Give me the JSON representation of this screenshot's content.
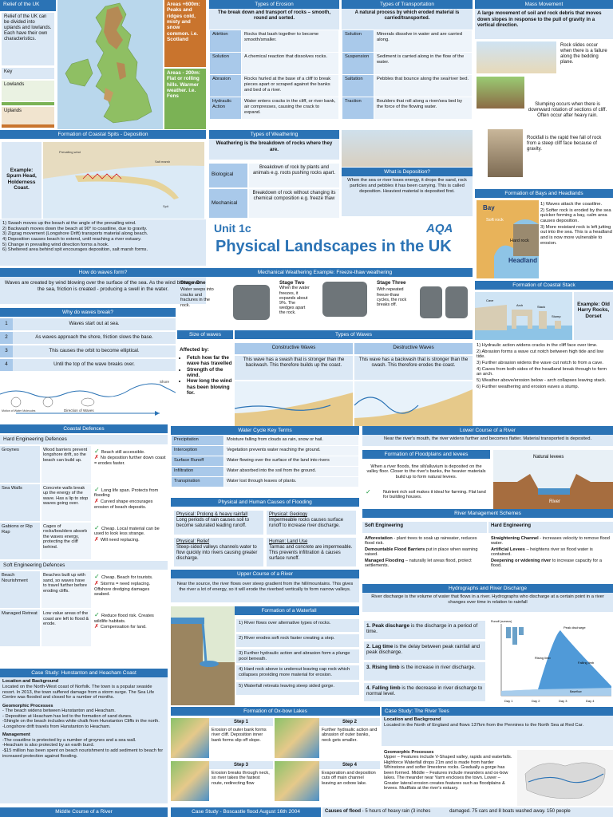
{
  "relief": {
    "title": "Relief of the UK",
    "intro": "Relief of the UK can be divided into uplands and lowlands. Each have their own characteristics.",
    "key": "Key",
    "lowlands": "Lowlands",
    "uplands": "Uplands",
    "upland_note": "Areas +600m: Peaks and ridges cold, misty and snow common. i.e. Scotland",
    "lowland_note": "Areas - 200m: Flat or rolling hills. Warmer weather. i.e. Fens"
  },
  "erosion": {
    "title": "Types of Erosion",
    "lead": "The break down and transport of rocks – smooth, round and sorted.",
    "rows": [
      {
        "k": "Attrition",
        "v": "Rocks that bash together to become smooth/smaller."
      },
      {
        "k": "Solution",
        "v": "A chemical reaction that dissolves rocks."
      },
      {
        "k": "Abrasion",
        "v": "Rocks hurled at the base of a cliff to break pieces apart or scraped against the banks and bed of a river."
      },
      {
        "k": "Hydraulic Action",
        "v": "Water enters cracks in the cliff, or river bank, air compresses, causing the crack to expand."
      }
    ]
  },
  "transport": {
    "title": "Types of Transportation",
    "lead": "A natural process by which eroded material is carried/transported.",
    "rows": [
      {
        "k": "Solution",
        "v": "Minerals dissolve in water and are carried along."
      },
      {
        "k": "Suspension",
        "v": "Sediment is carried along in the flow of the water."
      },
      {
        "k": "Saltation",
        "v": "Pebbles that bounce along the sea/river bed."
      },
      {
        "k": "Traction",
        "v": "Boulders that roll along a river/sea bed by the force of the flowing water."
      }
    ]
  },
  "mass": {
    "title": "Mass Movement",
    "lead": "A large movement of soil and rock debris that moves down slopes in response to the pull of gravity in a vertical direction.",
    "slides": "Rock slides occur when there is a failure along the bedding plane.",
    "slumping": "Slumping occurs when there is downward rotation of sections of cliff. Often occur after heavy rain.",
    "rockfall": "Rockfall is the rapid free fall of rock from a steep cliff face because of gravity."
  },
  "spits": {
    "title": "Formation of Coastal Spits - Deposition",
    "example": "Example: Spurn Head, Holderness Coast.",
    "steps": [
      "1) Swash moves up the beach at the angle of the prevailing wind.",
      "2) Backwash moves down the beach at 90° to coastline, due to gravity.",
      "3) Zigzag movement (Longshore Drift) transports material along beach.",
      "4) Deposition causes beach to extend, until reaching a river estuary.",
      "5) Change in prevailing wind direction forms a hook.",
      "6) Sheltered area behind spit encourages deposition, salt marsh forms."
    ]
  },
  "weathering": {
    "title": "Types of Weathering",
    "lead": "Weathering is the breakdown of rocks where they are.",
    "bio_k": "Biological",
    "bio_v": "Breakdown of rock by plants and animals e.g. roots pushing rocks apart.",
    "mech_k": "Mechanical",
    "mech_v": "Breakdown of rock without changing its chemical composition e.g. freeze thaw"
  },
  "deposition": {
    "title": "What is Deposition?",
    "text": "When the sea or river loses energy, it drops the sand, rock particles and pebbles it has been carrying. This is called deposition. Heaviest material is deposited first."
  },
  "unit": {
    "label": "Unit 1c",
    "title": "Physical Landscapes in the UK",
    "logo": "AQA"
  },
  "bays": {
    "title": "Formation of Bays and Headlands",
    "bay": "Bay",
    "softrock": "Soft rock",
    "hardrock": "Hard rock",
    "headland": "Headland",
    "steps": [
      "1) Waves attack the coastline.",
      "2) Softer rock is eroded by the sea quicker forming a bay, calm area causes deposition.",
      "3) More resistant rock is left jutting out into the sea. This is a headland and is now more vulnerable to erosion."
    ]
  },
  "waves_form": {
    "title": "How do waves form?",
    "text": "Waves are created by wind blowing over the surface of the sea. As the wind blows over the sea, friction is created - producing a swell in the water."
  },
  "waves_break": {
    "title": "Why do waves break?",
    "rows": [
      {
        "n": "1",
        "t": "Waves start out at sea."
      },
      {
        "n": "2",
        "t": "As waves approach the shore, friction slows the base."
      },
      {
        "n": "3",
        "t": "This causes the orbit to become elliptical."
      },
      {
        "n": "4",
        "t": "Until the top of the wave breaks over."
      }
    ],
    "shore": "Shore",
    "direction": "Direction of Waves",
    "motion": "Motion of Water Molecules"
  },
  "freeze": {
    "title": "Mechanical Weathering Example: Freeze-thaw weathering",
    "s1": "Stage One",
    "s1t": "Water seeps into cracks and fractures in the rock.",
    "s2": "Stage Two",
    "s2t": "When the water freezes, it expands about 9%. The wedges apart the rock.",
    "s3": "Stage Three",
    "s3t": "With repeated freeze-thaw cycles, the rock breaks off."
  },
  "size": {
    "title": "Size of waves",
    "lead": "Affected by:",
    "items": [
      "Fetch how far the wave has travelled",
      "Strength of the wind.",
      "How long the wind has been blowing for."
    ]
  },
  "wtypes": {
    "title": "Types of Waves",
    "con": "Constructive Waves",
    "des": "Destructive Waves",
    "con_t": "This wave has a swash that is stronger than the backwash. This therefore builds up the coast.",
    "des_t": "This wave has a backwash that is stronger than the swash. This therefore erodes the coast."
  },
  "stack": {
    "title": "Formation of Coastal Stack",
    "example": "Example: Old Harry Rocks, Dorset",
    "steps": [
      "1) Hydraulic action widens cracks in the cliff face over time.",
      "2) Abrasion forms a wave cut notch between high tide and low tide.",
      "3) Further abrasion widens the wave cut notch to from a cave.",
      "4) Caves from both sides of the headland break through to form an arch.",
      "5) Weather above/erosion below - arch collapses leaving stack.",
      "6) Further weathering and erosion eaves a stump."
    ]
  },
  "defences": {
    "title": "Coastal Defences",
    "hard": "Hard Engineering Defences",
    "soft": "Soft Engineering Defences",
    "hard_rows": [
      {
        "k": "Groynes",
        "d": "Wood barriers prevent longshore drift, so the beach can build up.",
        "p": "Beach still accessible.",
        "c": "No deposition further down coast = erodes faster."
      },
      {
        "k": "Sea Walls",
        "d": "Concrete walls break up the energy of the wave. Has a lip to stop waves going over.",
        "p": "Long life span. Protects from flooding",
        "c": "Curved shape encourages erosion of beach deposits."
      },
      {
        "k": "Gabions or Rip Rap",
        "d": "Cages of rocks/boulders absorb the waves energy, protecting the cliff behind.",
        "p": "Cheap. Local material can be used to look less strange.",
        "c": "Will need replacing."
      }
    ],
    "soft_rows": [
      {
        "k": "Beach Nourishment",
        "d": "Beaches built up with sand, so waves have to travel further before eroding cliffs.",
        "p": "Cheap. Beach for tourists.",
        "c": "Storms = need replacing. Offshore dredging damages seabed."
      },
      {
        "k": "Managed Retreat",
        "d": "Low value areas of the coast are left to flood & erode.",
        "p": "Reduce flood risk. Creates wildlife habitats.",
        "c": "Compensation for land."
      }
    ]
  },
  "watercycle": {
    "title": "Water Cycle Key Terms",
    "rows": [
      {
        "k": "Precipitation",
        "v": "Moisture falling from clouds as rain, snow or hail."
      },
      {
        "k": "Interception",
        "v": "Vegetation prevents water reaching the ground."
      },
      {
        "k": "Surface Runoff",
        "v": "Water flowing over the surface of the land into rivers"
      },
      {
        "k": "Infiltration",
        "v": "Water absorbed into the soil from the ground."
      },
      {
        "k": "Transpiration",
        "v": "Water lost through leaves of plants."
      }
    ]
  },
  "flooding": {
    "title": "Physical and Human Causes of Flooding",
    "c1": "Physical: Prolong & heavy rainfall",
    "c1t": "Long periods of rain causes soil to become saturated leading runoff.",
    "c2": "Physical: Geology",
    "c2t": "Impermeable rocks causes surface runoff to increase river discharge.",
    "c3": "Physical: Relief",
    "c3t": "Steep-sided valleys channels water to flow quickly into rivers causing greater discharge.",
    "c4": "Human: Land Use",
    "c4t": "Tarmac and concrete are impermeable. This prevents infiltration & causes surface runoff."
  },
  "upper": {
    "title": "Upper Course of a River",
    "text": "Near the source, the river flows over steep gradient from the hill/mountains. This gives the river a lot of energy, so it will erode the riverbed vertically to form narrow valleys."
  },
  "waterfall": {
    "title": "Formation of a Waterfall",
    "steps": [
      "1) River flows over alternative types of rocks.",
      "2) River erodes soft rock faster creating a step.",
      "3) Further hydraulic action and abrasion form a plunge pool beneath.",
      "4) Hard rock above is undercut leaving cap rock which collapses providing more material for erosion.",
      "5) Waterfall retreats leaving steep sided gorge."
    ]
  },
  "oxbow": {
    "title": "Formation of Ox-bow Lakes",
    "s1": "Step 1",
    "s1t": "Erosion of outer bank forms river cliff. Deposition inner bank forms slip off slope.",
    "s2": "Step 2",
    "s2t": "Further hydraulic action and abrasion of outer banks, neck gets smaller.",
    "s3": "Step 3",
    "s3t": "Erosion breaks through neck, so river takes the fastest route, redirecting flow",
    "s4": "Step 4",
    "s4t": "Evaporation and deposition cuts off main channel leaving an oxbow lake."
  },
  "lower": {
    "title": "Lower Course of a River",
    "text": "Near the river's mouth, the river widens further and becomes flatter. Material transported is deposited."
  },
  "levees": {
    "title": "Formation of Floodplains and levees",
    "text": "When a river floods, fine silt/alluvium is deposited on the valley floor. Closer to the river's banks, the heavier materials build up to form natural levees.",
    "tick": "Nutrient rich soil makes it ideal for farming. Flat land for building houses.",
    "natural": "Natural levees",
    "river": "River"
  },
  "mgmt": {
    "title": "River Management Schemes",
    "soft": "Soft Engineering",
    "hard": "Hard Engineering",
    "soft_items": [
      [
        "Afforestation",
        " - plant trees to soak up rainwater, reduces flood risk."
      ],
      [
        "Demountable Flood Barriers",
        " put in place when warning raised."
      ],
      [
        "Managed Flooding",
        " – naturally let areas flood, protect settlements."
      ]
    ],
    "hard_items": [
      [
        "Straightening Channel",
        " - increases velocity to remove flood water."
      ],
      [
        "Artificial Levees",
        " – heightens river so flood water is contained."
      ],
      [
        "Deepening or widening river",
        " to increase capacity for a flood."
      ]
    ]
  },
  "hydro": {
    "title": "Hydrographs and River Discharge",
    "lead": "River discharge is the volume of water that flows in a river. Hydrographs who discharge at a certain point in a river changes over time in relation to rainfall",
    "rows": [
      {
        "b": "1. Peak discharge",
        "t": " is the discharge in a period of time."
      },
      {
        "b": "2. Lag time",
        "t": " is the delay between peak rainfall and peak discharge."
      },
      {
        "b": "3. Rising limb",
        "t": " is the increase in river discharge."
      },
      {
        "b": "4. Falling limb",
        "t": " is the decrease in river discharge to normal level."
      }
    ]
  },
  "hunst": {
    "title": "Case Study: Hunstanton and Heacham Coast",
    "loc_h": "Location and Background",
    "loc": "Located on the North-West coast of Norfolk. The town is a popular seaside resort. In 2013, the town suffered damage from a storm surge. The Sea Life Centre was flooded and closed for a number of months.",
    "geo_h": "Geomorphic Processes",
    "geo": [
      "- The beach widens between Hunstanton and Heacham.",
      "- Deposition at Heacham has led to the formation of sand dunes.",
      "-Shingle on the beach includes white chalk from Hunstanton Cliffs in the north.",
      "-Longshore drift travels from Hunstanton to Heacham."
    ],
    "man_h": "Management",
    "man": [
      "-The coastline is protected by a number of groynes and a sea wall.",
      "-Heacham is also protected by an earth bund.",
      "-$15 million has been spent on beach nourishment to add sediment to beach for increased protection against flooding."
    ]
  },
  "tees": {
    "title": "Case Study: The River Tees",
    "loc_h": "Location and Background",
    "loc": "Located in the North of England and flows 137km from the Pennines to the North Sea at Red Car.",
    "geo_h": "Geomorphic Processes",
    "geo": "Upper – Features include V-Shaped valley, rapids and waterfalls. Highforce Waterfall drops 21m and is made from harder Whinstone and softer limestone rocks. Gradually a gorge has been formed. Middle – Features include meanders and ox-bow lakes. The meander near Yarm encloses the town. Lower – Greater lateral erosion creates features such as floodplains & levees. Mudflats at the river's estuary."
  },
  "footer": {
    "middle": "Middle Course of a River",
    "boscastle": "Case Study - Boscastle flood August 16th 2004",
    "causes_b": "Causes of flood",
    "causes": " - 5 hours of heavy rain (3 inches",
    "damage": "damaged. 75 cars and 8 boats washed away. 150 people"
  },
  "hydrograph_labels": {
    "runoff": "Runoff (cumecs)",
    "peak": "Peak discharge",
    "rising": "Rising limb",
    "falling": "Falling limb",
    "base": "Baseflow",
    "days": [
      "Day 1",
      "Day 2",
      "Day 3",
      "Day 4"
    ]
  },
  "spit_labels": {
    "wind": "Prevailing wind",
    "spit": "Spit",
    "marsh": "Salt marsh"
  },
  "stack_labels": {
    "stump": "Stump",
    "stack": "Stack",
    "arch": "Arch",
    "cave": "Cave"
  }
}
